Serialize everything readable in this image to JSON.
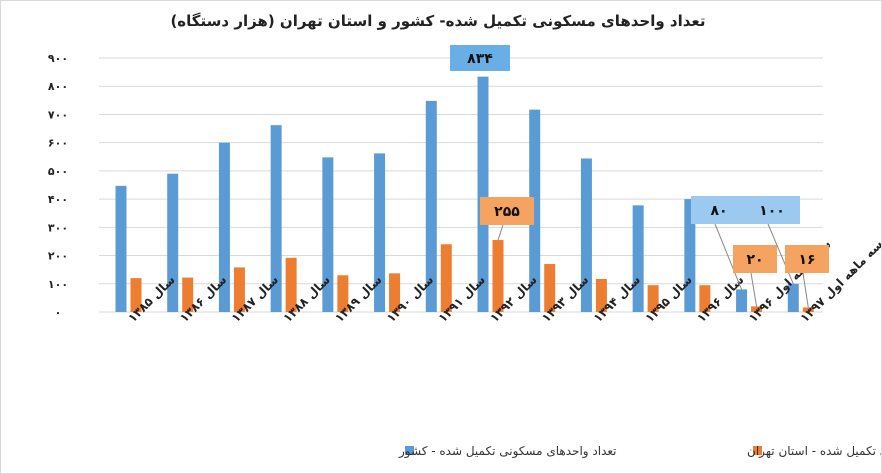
{
  "chart_data": {
    "type": "bar",
    "title": "تعداد واحدهای مسکونی تکمیل شده- کشور و استان تهران (هزار دستگاه)",
    "categories": [
      "سال ۱۳۸۵",
      "سال ۱۳۸۶",
      "سال ۱۳۸۷",
      "سال ۱۳۸۸",
      "سال ۱۳۸۹",
      "سال ۱۳۹۰",
      "سال ۱۳۹۱",
      "سال ۱۳۹۲",
      "سال ۱۳۹۳",
      "سال ۱۳۹۴",
      "سال ۱۳۹۵",
      "سال ۱۳۹۶",
      "سه ماهه اول ۱۳۹۶",
      "سه ماهه اول ۱۳۹۷"
    ],
    "series": [
      {
        "name": "تعداد واحدهای مسکونی تکمیل شده - کشور",
        "color": "#5b9bd5",
        "values": [
          447,
          490,
          600,
          662,
          548,
          562,
          748,
          834,
          717,
          544,
          378,
          400,
          80,
          100
        ]
      },
      {
        "name": "تعداد واحدهای مسکونی تکمیل شده - استان تهران",
        "color": "#ed7d31",
        "values": [
          120,
          122,
          158,
          192,
          130,
          137,
          240,
          255,
          170,
          117,
          95,
          95,
          20,
          16
        ]
      }
    ],
    "ylim": [
      0,
      900
    ],
    "yticks": [
      0,
      100,
      200,
      300,
      400,
      500,
      600,
      700,
      800,
      900
    ],
    "ytick_labels": [
      "۰",
      "۱۰۰",
      "۲۰۰",
      "۳۰۰",
      "۴۰۰",
      "۵۰۰",
      "۶۰۰",
      "۷۰۰",
      "۸۰۰",
      "۹۰۰"
    ],
    "grid": true,
    "legend_position": "bottom",
    "annotations": [
      {
        "series": 0,
        "index": 7,
        "text": "۸۳۴",
        "style": "blue"
      },
      {
        "series": 1,
        "index": 7,
        "text": "۲۵۵",
        "style": "orange"
      },
      {
        "series": 0,
        "index": 12,
        "text": "۸۰",
        "style": "lightblue"
      },
      {
        "series": 1,
        "index": 12,
        "text": "۲۰",
        "style": "orange"
      },
      {
        "series": 0,
        "index": 13,
        "text": "۱۰۰",
        "style": "lightblue"
      },
      {
        "series": 1,
        "index": 13,
        "text": "۱۶",
        "style": "orange"
      }
    ],
    "colors": {
      "blue_box": "#6aaee6",
      "lightblue_box": "#9cc9ef",
      "orange_box": "#f4a460"
    }
  }
}
